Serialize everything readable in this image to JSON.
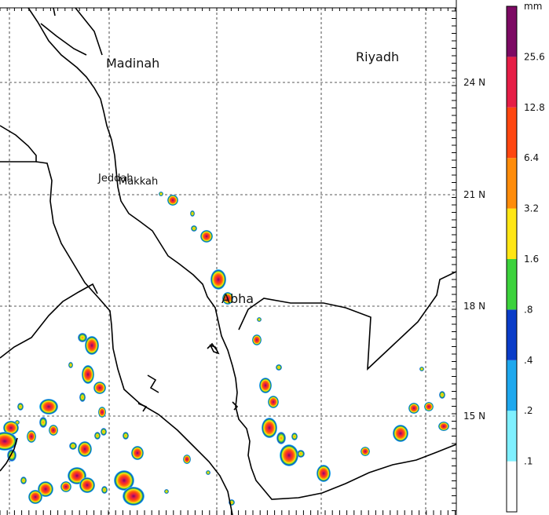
{
  "map": {
    "cities": [
      {
        "name": "Madinah"
      },
      {
        "name": "Riyadh"
      },
      {
        "name": "Jeddah"
      },
      {
        "name": "Makkah"
      },
      {
        "name": "Abha"
      }
    ],
    "latitude_labels": [
      "24 N",
      "21 N",
      "18 N",
      "15 N"
    ]
  },
  "colorbar": {
    "unit": "mm",
    "levels": [
      ".1",
      ".2",
      ".4",
      ".8",
      "1.6",
      "3.2",
      "6.4",
      "12.8",
      "25.6"
    ],
    "colors": [
      "#ffffff",
      "#7ff0ff",
      "#1ea8ee",
      "#0a3cc8",
      "#3cd23c",
      "#ffe614",
      "#ff8c0a",
      "#ff4610",
      "#e61e46",
      "#7d0a64"
    ]
  },
  "style": {
    "grid_color": "#222222",
    "border_color": "#000000"
  }
}
